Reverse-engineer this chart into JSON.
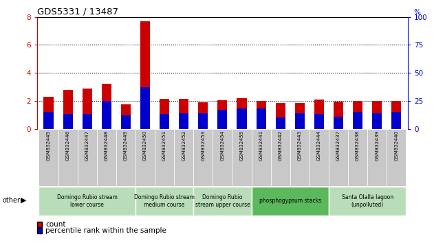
{
  "title": "GDS5331 / 13487",
  "samples": [
    "GSM832445",
    "GSM832446",
    "GSM832447",
    "GSM832448",
    "GSM832449",
    "GSM832450",
    "GSM832451",
    "GSM832452",
    "GSM832453",
    "GSM832454",
    "GSM832455",
    "GSM832441",
    "GSM832442",
    "GSM832443",
    "GSM832444",
    "GSM832437",
    "GSM832438",
    "GSM832439",
    "GSM832440"
  ],
  "count_values": [
    2.3,
    2.8,
    2.9,
    3.2,
    1.75,
    7.7,
    2.15,
    2.15,
    1.9,
    2.05,
    2.2,
    2.0,
    1.85,
    1.85,
    2.1,
    1.95,
    2.0,
    2.0,
    2.0
  ],
  "pct_values": [
    15,
    13,
    13,
    25,
    12,
    37,
    13,
    14,
    14,
    17,
    18,
    18,
    10,
    14,
    13,
    11,
    15,
    14,
    15
  ],
  "groups": [
    {
      "label": "Domingo Rubio stream\nlower course",
      "start": 0,
      "end": 5,
      "color": "#b8ddb8"
    },
    {
      "label": "Domingo Rubio stream\nmedium course",
      "start": 5,
      "end": 8,
      "color": "#b8ddb8"
    },
    {
      "label": "Domingo Rubio\nstream upper course",
      "start": 8,
      "end": 11,
      "color": "#b8ddb8"
    },
    {
      "label": "phosphogypsum stacks",
      "start": 11,
      "end": 15,
      "color": "#5cb85c"
    },
    {
      "label": "Santa Olalla lagoon\n(unpolluted)",
      "start": 15,
      "end": 19,
      "color": "#b8ddb8"
    }
  ],
  "bar_color": "#cc0000",
  "pct_color": "#0000cc",
  "left_ylim": [
    0,
    8
  ],
  "right_ylim": [
    0,
    100
  ],
  "left_yticks": [
    0,
    2,
    4,
    6,
    8
  ],
  "right_yticks": [
    0,
    25,
    50,
    75,
    100
  ],
  "left_tick_color": "#cc0000",
  "right_tick_color": "#0000cc",
  "bg_color": "#ffffff",
  "tick_label_bg": "#c8c8c8",
  "bar_width": 0.5,
  "fig_width": 6.31,
  "fig_height": 3.54
}
